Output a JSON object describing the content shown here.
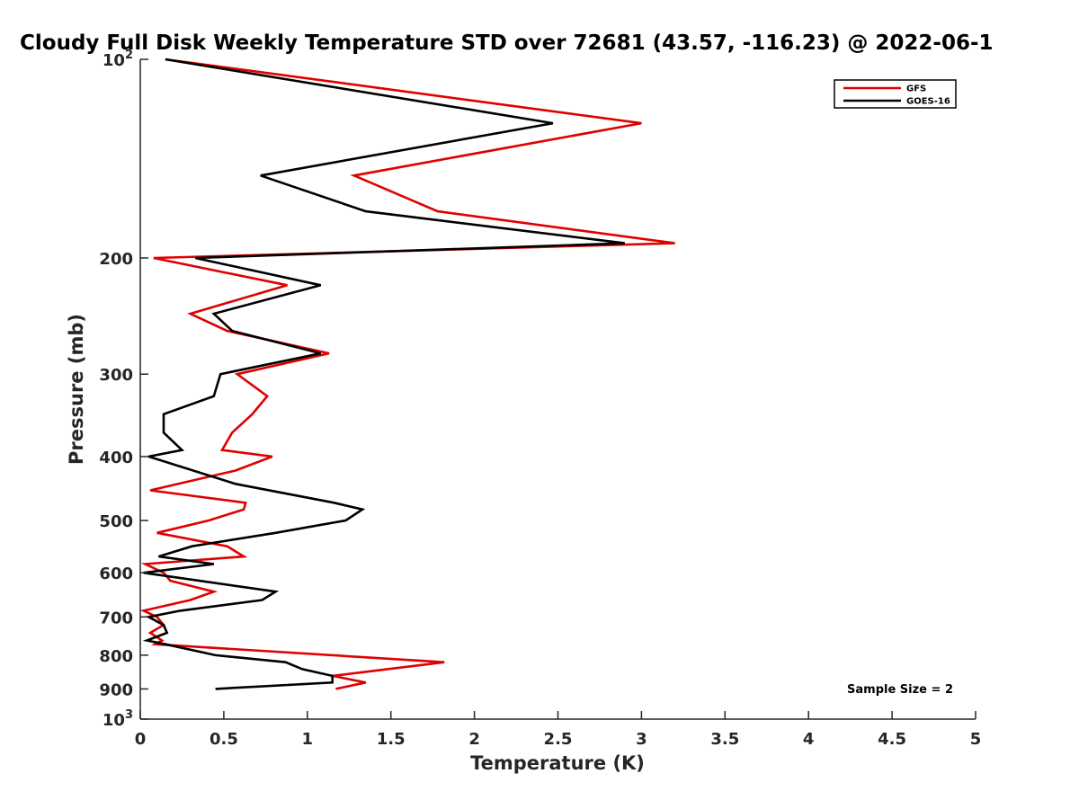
{
  "chart_data": {
    "type": "line",
    "title": "Cloudy Full Disk Weekly Temperature STD over 72681 (43.57, -116.23) @ 2022-06-1",
    "xlabel": "Temperature (K)",
    "ylabel": "Pressure (mb)",
    "xlim": [
      0,
      5
    ],
    "ylim": [
      100,
      1000
    ],
    "y_scale": "log",
    "y_reversed": true,
    "x_ticks": [
      "0",
      "0.5",
      "1",
      "1.5",
      "2",
      "2.5",
      "3",
      "3.5",
      "4",
      "4.5",
      "5"
    ],
    "y_ticks": [
      {
        "value": 100,
        "label": "10",
        "sup": "2"
      },
      {
        "value": 200,
        "label": "200",
        "sup": ""
      },
      {
        "value": 300,
        "label": "300",
        "sup": ""
      },
      {
        "value": 400,
        "label": "400",
        "sup": ""
      },
      {
        "value": 500,
        "label": "500",
        "sup": ""
      },
      {
        "value": 600,
        "label": "600",
        "sup": ""
      },
      {
        "value": 700,
        "label": "700",
        "sup": ""
      },
      {
        "value": 800,
        "label": "800",
        "sup": ""
      },
      {
        "value": 900,
        "label": "900",
        "sup": ""
      },
      {
        "value": 1000,
        "label": "10",
        "sup": "3"
      }
    ],
    "grid": false,
    "legend_position": "top-right",
    "series": [
      {
        "name": "GFS",
        "color": "#e00000",
        "points": [
          [
            0.15,
            100
          ],
          [
            3.0,
            125
          ],
          [
            1.28,
            150
          ],
          [
            1.78,
            170
          ],
          [
            3.2,
            190
          ],
          [
            0.08,
            200
          ],
          [
            0.88,
            220
          ],
          [
            0.3,
            243
          ],
          [
            0.52,
            258
          ],
          [
            1.13,
            279
          ],
          [
            0.58,
            300
          ],
          [
            0.76,
            324
          ],
          [
            0.67,
            345
          ],
          [
            0.55,
            368
          ],
          [
            0.49,
            391
          ],
          [
            0.79,
            400
          ],
          [
            0.57,
            420
          ],
          [
            0.06,
            450
          ],
          [
            0.63,
            470
          ],
          [
            0.62,
            481
          ],
          [
            0.41,
            500
          ],
          [
            0.1,
            522
          ],
          [
            0.52,
            547
          ],
          [
            0.62,
            567
          ],
          [
            0.03,
            582
          ],
          [
            0.14,
            600
          ],
          [
            0.18,
            617
          ],
          [
            0.44,
            641
          ],
          [
            0.3,
            660
          ],
          [
            0.02,
            685
          ],
          [
            0.1,
            700
          ],
          [
            0.14,
            720
          ],
          [
            0.06,
            740
          ],
          [
            0.13,
            760
          ],
          [
            0.09,
            770
          ],
          [
            1.82,
            820
          ],
          [
            1.15,
            860
          ],
          [
            1.35,
            880
          ],
          [
            1.17,
            900
          ]
        ]
      },
      {
        "name": "GOES-16",
        "color": "#000000",
        "points": [
          [
            0.15,
            100
          ],
          [
            2.47,
            125
          ],
          [
            0.72,
            150
          ],
          [
            1.35,
            170
          ],
          [
            2.9,
            190
          ],
          [
            0.33,
            200
          ],
          [
            1.08,
            220
          ],
          [
            0.44,
            243
          ],
          [
            0.55,
            258
          ],
          [
            1.08,
            279
          ],
          [
            0.48,
            300
          ],
          [
            0.44,
            324
          ],
          [
            0.14,
            345
          ],
          [
            0.14,
            368
          ],
          [
            0.25,
            391
          ],
          [
            0.05,
            400
          ],
          [
            0.57,
            440
          ],
          [
            1.16,
            470
          ],
          [
            1.33,
            481
          ],
          [
            1.23,
            500
          ],
          [
            0.81,
            522
          ],
          [
            0.31,
            547
          ],
          [
            0.11,
            567
          ],
          [
            0.44,
            582
          ],
          [
            0.02,
            600
          ],
          [
            0.81,
            641
          ],
          [
            0.73,
            660
          ],
          [
            0.24,
            685
          ],
          [
            0.05,
            700
          ],
          [
            0.14,
            720
          ],
          [
            0.16,
            740
          ],
          [
            0.04,
            760
          ],
          [
            0.15,
            770
          ],
          [
            0.45,
            800
          ],
          [
            0.87,
            820
          ],
          [
            0.97,
            840
          ],
          [
            1.15,
            860
          ],
          [
            1.15,
            880
          ],
          [
            0.45,
            900
          ]
        ]
      }
    ],
    "annotation": "Sample Size = 2"
  }
}
